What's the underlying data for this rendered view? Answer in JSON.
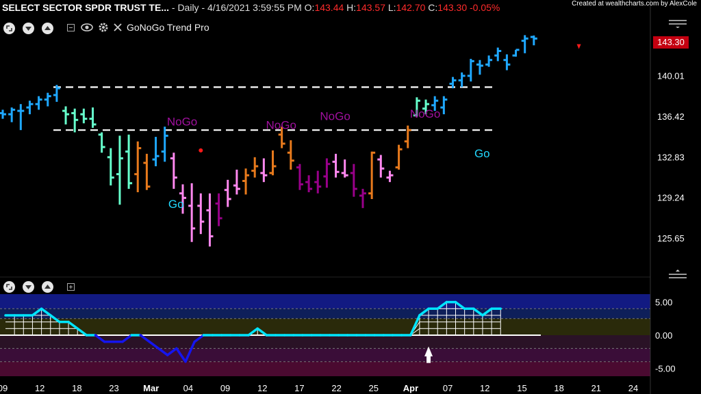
{
  "header": {
    "symbol": "SELECT SECTOR SPDR TRUST TE...",
    "interval": "- Daily - 4/16/2021 3:59:55 PM",
    "o_label": "O:",
    "o_value": "143.44",
    "h_label": "H:",
    "h_value": "143.57",
    "l_label": "L:",
    "l_value": "142.70",
    "c_label": "C:",
    "c_value": "143.30",
    "change": "-0.05%"
  },
  "credit": "Created at wealthcharts.com by AlexCole",
  "indicator_name": "GoNoGo Trend Pro",
  "last_price_tag": "143.30",
  "colors": {
    "background": "#000000",
    "go_strong": "#1fa8ff",
    "go_weak": "#66ffcc",
    "nogo_weak": "#ff88f0",
    "nogo_strong": "#99008a",
    "amber": "#e87a1c",
    "osc_pos": "#00e5ff",
    "osc_neg": "#1515ee",
    "price_tag": "#c40010"
  },
  "chart_data": [
    {
      "type": "ohlc",
      "y_ticks": [
        "125.65",
        "129.24",
        "132.83",
        "136.42",
        "140.01"
      ],
      "ylim": [
        122.5,
        145.5
      ],
      "x_ticks": [
        "09",
        "12",
        "18",
        "23",
        "Mar",
        "04",
        "09",
        "12",
        "17",
        "22",
        "25",
        "Apr",
        "07",
        "12",
        "15",
        "18",
        "21",
        "24"
      ],
      "dashed_levels": [
        139.0,
        135.2
      ],
      "bars": [
        {
          "o": 136.7,
          "h": 137.0,
          "l": 136.2,
          "c": 136.6,
          "s": "go_strong"
        },
        {
          "o": 136.6,
          "h": 137.2,
          "l": 135.9,
          "c": 137.0,
          "s": "go_strong"
        },
        {
          "o": 136.9,
          "h": 137.5,
          "l": 135.2,
          "c": 136.9,
          "s": "go_strong"
        },
        {
          "o": 137.2,
          "h": 137.8,
          "l": 136.6,
          "c": 137.5,
          "s": "go_strong"
        },
        {
          "o": 137.5,
          "h": 138.2,
          "l": 137.0,
          "c": 137.9,
          "s": "go_strong"
        },
        {
          "o": 137.9,
          "h": 138.5,
          "l": 137.3,
          "c": 138.2,
          "s": "go_strong"
        },
        {
          "o": 138.3,
          "h": 139.2,
          "l": 137.7,
          "c": 138.9,
          "s": "go_strong"
        },
        {
          "o": 136.9,
          "h": 137.3,
          "l": 135.7,
          "c": 136.6,
          "s": "go_weak"
        },
        {
          "o": 136.7,
          "h": 137.1,
          "l": 135.0,
          "c": 136.1,
          "s": "go_weak"
        },
        {
          "o": 136.6,
          "h": 137.1,
          "l": 135.8,
          "c": 136.2,
          "s": "go_weak"
        },
        {
          "o": 136.2,
          "h": 137.2,
          "l": 135.4,
          "c": 135.7,
          "s": "go_weak"
        },
        {
          "o": 134.8,
          "h": 135.0,
          "l": 133.2,
          "c": 133.7,
          "s": "go_weak"
        },
        {
          "o": 132.8,
          "h": 133.6,
          "l": 130.3,
          "c": 131.0,
          "s": "go_weak"
        },
        {
          "o": 131.3,
          "h": 134.7,
          "l": 128.6,
          "c": 132.7,
          "s": "go_weak"
        },
        {
          "o": 133.3,
          "h": 134.8,
          "l": 130.0,
          "c": 130.5,
          "s": "go_weak"
        },
        {
          "o": 131.3,
          "h": 134.2,
          "l": 129.7,
          "c": 133.6,
          "s": "amber"
        },
        {
          "o": 132.3,
          "h": 133.1,
          "l": 129.9,
          "c": 130.2,
          "s": "amber"
        },
        {
          "o": 132.6,
          "h": 134.6,
          "l": 132.0,
          "c": 132.9,
          "s": "go_strong"
        },
        {
          "o": 133.3,
          "h": 135.5,
          "l": 132.4,
          "c": 134.7,
          "s": "go_strong"
        },
        {
          "o": 132.7,
          "h": 133.2,
          "l": 130.0,
          "c": 131.0,
          "s": "nogo_weak"
        },
        {
          "o": 129.6,
          "h": 130.4,
          "l": 127.8,
          "c": 129.2,
          "s": "nogo_weak"
        },
        {
          "o": 128.5,
          "h": 130.5,
          "l": 125.3,
          "c": 126.5,
          "s": "nogo_weak"
        },
        {
          "o": 128.5,
          "h": 129.6,
          "l": 126.0,
          "c": 127.1,
          "s": "nogo_weak"
        },
        {
          "o": 128.1,
          "h": 129.6,
          "l": 124.9,
          "c": 125.8,
          "s": "nogo_weak"
        },
        {
          "o": 128.7,
          "h": 129.6,
          "l": 126.7,
          "c": 127.4,
          "s": "nogo_strong"
        },
        {
          "o": 129.9,
          "h": 130.8,
          "l": 128.4,
          "c": 129.1,
          "s": "nogo_weak"
        },
        {
          "o": 130.3,
          "h": 131.7,
          "l": 129.5,
          "c": 130.0,
          "s": "nogo_weak"
        },
        {
          "o": 130.7,
          "h": 131.8,
          "l": 129.5,
          "c": 131.2,
          "s": "amber"
        },
        {
          "o": 131.6,
          "h": 132.8,
          "l": 131.0,
          "c": 132.0,
          "s": "amber"
        },
        {
          "o": 131.4,
          "h": 132.7,
          "l": 130.6,
          "c": 131.2,
          "s": "nogo_weak"
        },
        {
          "o": 131.4,
          "h": 133.4,
          "l": 131.2,
          "c": 132.0,
          "s": "amber"
        },
        {
          "o": 134.8,
          "h": 135.5,
          "l": 133.6,
          "c": 134.0,
          "s": "amber"
        },
        {
          "o": 133.2,
          "h": 134.3,
          "l": 131.7,
          "c": 132.5,
          "s": "amber"
        },
        {
          "o": 131.9,
          "h": 132.2,
          "l": 129.9,
          "c": 130.4,
          "s": "nogo_strong"
        },
        {
          "o": 130.6,
          "h": 131.2,
          "l": 129.7,
          "c": 130.0,
          "s": "nogo_strong"
        },
        {
          "o": 130.6,
          "h": 131.6,
          "l": 129.6,
          "c": 130.2,
          "s": "nogo_strong"
        },
        {
          "o": 131.1,
          "h": 132.7,
          "l": 130.1,
          "c": 132.2,
          "s": "nogo_strong"
        },
        {
          "o": 132.4,
          "h": 133.1,
          "l": 131.0,
          "c": 131.5,
          "s": "nogo_weak"
        },
        {
          "o": 131.4,
          "h": 132.6,
          "l": 131.0,
          "c": 131.2,
          "s": "nogo_weak"
        },
        {
          "o": 131.4,
          "h": 132.2,
          "l": 129.3,
          "c": 130.0,
          "s": "nogo_strong"
        },
        {
          "o": 129.4,
          "h": 130.0,
          "l": 128.3,
          "c": 129.6,
          "s": "nogo_strong"
        },
        {
          "o": 129.6,
          "h": 133.3,
          "l": 129.1,
          "c": 133.2,
          "s": "amber"
        },
        {
          "o": 132.6,
          "h": 133.0,
          "l": 131.0,
          "c": 131.8,
          "s": "nogo_weak"
        },
        {
          "o": 131.0,
          "h": 131.6,
          "l": 130.6,
          "c": 131.2,
          "s": "nogo_weak"
        },
        {
          "o": 131.9,
          "h": 133.9,
          "l": 131.7,
          "c": 133.5,
          "s": "amber"
        },
        {
          "o": 134.2,
          "h": 135.6,
          "l": 133.6,
          "c": 135.2,
          "s": "amber"
        },
        {
          "o": 136.5,
          "h": 138.1,
          "l": 136.4,
          "c": 137.8,
          "s": "go_weak"
        },
        {
          "o": 137.1,
          "h": 137.9,
          "l": 136.6,
          "c": 137.5,
          "s": "go_weak"
        },
        {
          "o": 137.4,
          "h": 138.2,
          "l": 136.9,
          "c": 137.8,
          "s": "go_strong"
        },
        {
          "o": 137.2,
          "h": 138.2,
          "l": 136.6,
          "c": 137.9,
          "s": "go_strong"
        },
        {
          "o": 139.3,
          "h": 139.9,
          "l": 138.9,
          "c": 139.6,
          "s": "go_strong"
        },
        {
          "o": 139.6,
          "h": 140.3,
          "l": 139.0,
          "c": 140.0,
          "s": "go_strong"
        },
        {
          "o": 140.0,
          "h": 141.5,
          "l": 139.5,
          "c": 141.3,
          "s": "go_strong"
        },
        {
          "o": 141.0,
          "h": 141.4,
          "l": 140.1,
          "c": 140.9,
          "s": "go_strong"
        },
        {
          "o": 141.0,
          "h": 141.8,
          "l": 140.8,
          "c": 141.4,
          "s": "go_strong"
        },
        {
          "o": 141.8,
          "h": 142.5,
          "l": 141.3,
          "c": 142.2,
          "s": "go_strong"
        },
        {
          "o": 141.4,
          "h": 141.9,
          "l": 140.5,
          "c": 141.0,
          "s": "go_strong"
        },
        {
          "o": 141.8,
          "h": 142.3,
          "l": 141.7,
          "c": 142.3,
          "s": "go_strong"
        },
        {
          "o": 143.1,
          "h": 143.6,
          "l": 142.0,
          "c": 143.3,
          "s": "go_strong"
        },
        {
          "o": 143.44,
          "h": 143.57,
          "l": 142.7,
          "c": 143.3,
          "s": "go_strong"
        }
      ],
      "annotations": [
        {
          "text": "NoGo",
          "kind": "nogo",
          "bar": 19,
          "price": 135.6
        },
        {
          "text": "NoGo",
          "kind": "nogo",
          "bar": 30,
          "price": 135.3
        },
        {
          "text": "NoGo",
          "kind": "nogo",
          "bar": 36,
          "price": 136.1
        },
        {
          "text": "NoGo",
          "kind": "nogo",
          "bar": 46,
          "price": 136.3
        },
        {
          "text": "Go",
          "kind": "go",
          "bar": 19,
          "price": 128.3
        },
        {
          "text": "Go",
          "kind": "go",
          "bar": 53,
          "price": 132.8
        }
      ],
      "markers": [
        {
          "kind": "dot",
          "bar": 22,
          "price": 133.4
        },
        {
          "kind": "triangle_down",
          "bar": 64,
          "price": 142.5
        }
      ]
    },
    {
      "type": "oscillator",
      "y_ticks": [
        "5.00",
        "0.00",
        "-5.00"
      ],
      "ylim": [
        -6.2,
        6.2
      ],
      "values": [
        3,
        3,
        3,
        3,
        4,
        3,
        2,
        2,
        1,
        0,
        0,
        -1,
        -1,
        -1,
        0,
        0,
        -1,
        -2,
        -3,
        -2,
        -4,
        -1,
        0,
        0,
        0,
        0,
        0,
        0,
        1,
        0,
        0,
        0,
        0,
        0,
        0,
        0,
        0,
        0,
        0,
        0,
        0,
        0,
        0,
        0,
        0,
        0,
        3,
        4,
        4,
        5,
        5,
        4,
        4,
        3,
        4,
        4
      ],
      "arrow_bar": 47
    }
  ]
}
